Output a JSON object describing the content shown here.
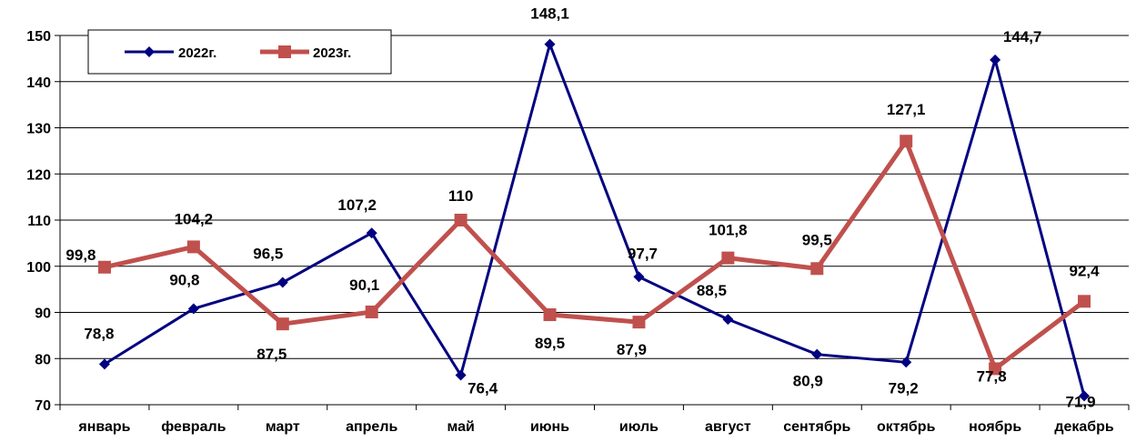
{
  "chart_data": {
    "type": "line",
    "categories": [
      "январь",
      "февраль",
      "март",
      "апрель",
      "май",
      "июнь",
      "июль",
      "август",
      "сентябрь",
      "октябрь",
      "ноябрь",
      "декабрь"
    ],
    "series": [
      {
        "name": "2022г.",
        "color": "#000080",
        "marker": "diamond",
        "values": [
          78.8,
          90.8,
          96.5,
          107.2,
          76.4,
          148.1,
          97.7,
          88.5,
          80.9,
          79.2,
          144.7,
          71.9
        ],
        "labels": [
          "78,8",
          "90,8",
          "96,5",
          "107,2",
          "76,4",
          "148,1",
          "97,7",
          "88,5",
          "80,9",
          "79,2",
          "144,7",
          "71,9"
        ]
      },
      {
        "name": "2023г.",
        "color": "#C0504D",
        "marker": "square",
        "values": [
          99.8,
          104.2,
          87.5,
          90.1,
          110,
          89.5,
          87.9,
          101.8,
          99.5,
          127.1,
          77.8,
          92.4
        ],
        "labels": [
          "99,8",
          "104,2",
          "87,5",
          "90,1",
          "110",
          "89,5",
          "87,9",
          "101,8",
          "99,5",
          "127,1",
          "77,8",
          "92,4"
        ]
      }
    ],
    "yticks": [
      "70",
      "80",
      "90",
      "100",
      "110",
      "120",
      "130",
      "140",
      "150"
    ],
    "ylim": [
      70,
      150
    ],
    "grid": true,
    "legend_position": "top-left"
  }
}
